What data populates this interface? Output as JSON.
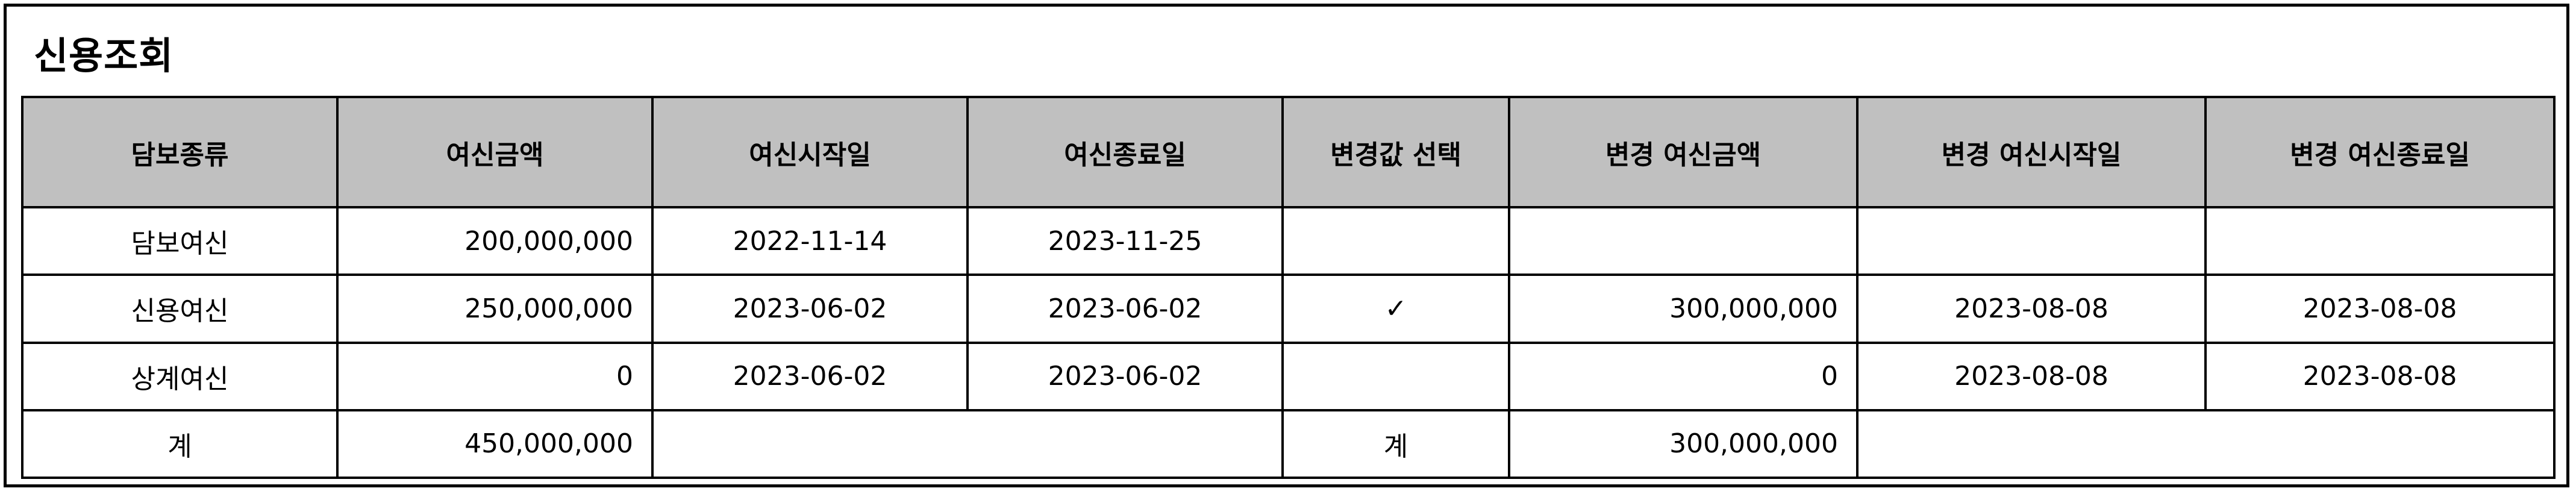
{
  "panel": {
    "title": "신용조회"
  },
  "table": {
    "headers": {
      "collateral_type": "담보종류",
      "credit_amount": "여신금액",
      "credit_start": "여신시작일",
      "credit_end": "여신종료일",
      "change_select": "변경값 선택",
      "new_credit_amount": "변경 여신금액",
      "new_credit_start": "변경 여신시작일",
      "new_credit_end": "변경 여신종료일"
    },
    "rows": [
      {
        "collateral_type": "담보여신",
        "credit_amount": "200,000,000",
        "credit_start": "2022-11-14",
        "credit_end": "2023-11-25",
        "selected": "",
        "new_credit_amount": "",
        "new_credit_start": "",
        "new_credit_end": ""
      },
      {
        "collateral_type": "신용여신",
        "credit_amount": "250,000,000",
        "credit_start": "2023-06-02",
        "credit_end": "2023-06-02",
        "selected": "✓",
        "new_credit_amount": "300,000,000",
        "new_credit_start": "2023-08-08",
        "new_credit_end": "2023-08-08"
      },
      {
        "collateral_type": "상계여신",
        "credit_amount": "0",
        "credit_start": "2023-06-02",
        "credit_end": "2023-06-02",
        "selected": "",
        "new_credit_amount": "0",
        "new_credit_start": "2023-08-08",
        "new_credit_end": "2023-08-08"
      }
    ],
    "total": {
      "label": "계",
      "credit_amount": "450,000,000",
      "new_label": "계",
      "new_credit_amount": "300,000,000"
    }
  }
}
